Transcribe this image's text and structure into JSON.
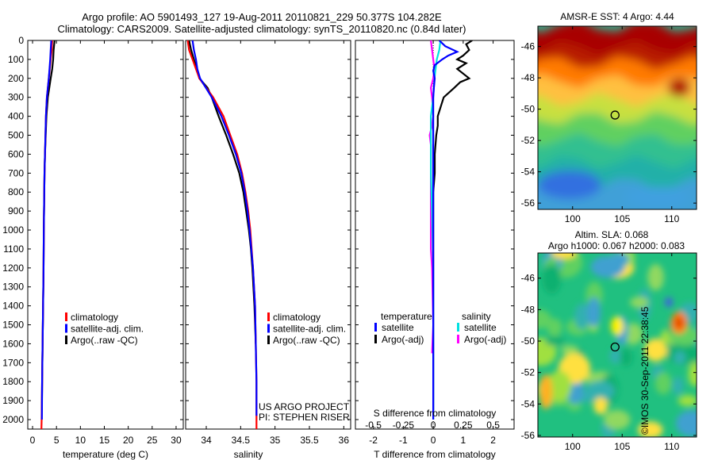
{
  "title_line1": "Argo profile: AO 5901493_127 19-Aug-2011 20110821_229 50.377S 104.282E",
  "title_line2": "Climatology: CARS2009. Satellite-adjusted climatology: synTS_20110820.nc (0.84d later)",
  "stamp": "©IMOS 30-Sep-2011 22:38:45",
  "colors": {
    "climatology": "#ff0000",
    "satellite": "#0000ff",
    "argo": "#000000",
    "t_sat": "#00e0e0",
    "s_argo": "#ff00ff"
  },
  "depth_ticks": [
    "0",
    "100",
    "200",
    "300",
    "400",
    "500",
    "600",
    "700",
    "800",
    "900",
    "1000",
    "1100",
    "1200",
    "1300",
    "1400",
    "1500",
    "1600",
    "1700",
    "1800",
    "1900",
    "2000"
  ],
  "chart_data": [
    {
      "type": "line",
      "xlabel": "temperature (deg C)",
      "xlim": [
        -1,
        31.5
      ],
      "ylim": [
        2050,
        0
      ],
      "xticks": [
        0,
        5,
        10,
        15,
        20,
        25,
        30
      ],
      "legend": [
        "climatology",
        "satellite-adj. clim.",
        "Argo(..raw -QC)"
      ],
      "series": [
        {
          "name": "climatology",
          "depth": [
            0,
            50,
            100,
            150,
            200,
            250,
            300,
            400,
            500,
            600,
            700,
            800,
            900,
            1000,
            1200,
            1400,
            1600,
            1800,
            2000,
            2050
          ],
          "values": [
            4.1,
            4.0,
            3.8,
            3.6,
            3.4,
            3.2,
            3.0,
            2.8,
            2.7,
            2.6,
            2.5,
            2.45,
            2.4,
            2.35,
            2.3,
            2.2,
            2.1,
            2.0,
            1.9,
            1.85
          ]
        },
        {
          "name": "satellite-adj. clim.",
          "depth": [
            0,
            50,
            100,
            150,
            200,
            250,
            300,
            400,
            500,
            600,
            700,
            800,
            900,
            1000,
            1200,
            1400,
            1600,
            1800,
            2000
          ],
          "values": [
            3.9,
            3.8,
            3.7,
            3.55,
            3.4,
            3.2,
            3.0,
            2.8,
            2.7,
            2.6,
            2.5,
            2.45,
            2.4,
            2.35,
            2.3,
            2.2,
            2.1,
            2.0,
            1.95
          ]
        },
        {
          "name": "Argo(..raw -QC)",
          "depth": [
            0,
            50,
            100,
            150,
            200,
            250,
            300,
            400,
            500,
            600,
            700,
            800,
            900,
            1000,
            1200,
            1400,
            1600,
            1800,
            1950
          ],
          "values": [
            4.6,
            4.4,
            4.3,
            4.1,
            3.8,
            3.5,
            3.2,
            2.9,
            2.75,
            2.6,
            2.5,
            2.45,
            2.4,
            2.35,
            2.3,
            2.2,
            2.1,
            2.0,
            1.95
          ]
        }
      ]
    },
    {
      "type": "line",
      "xlabel": "salinity",
      "xlim": [
        33.7,
        36.1
      ],
      "ylim": [
        2050,
        0
      ],
      "xticks": [
        34,
        34.5,
        35,
        35.5,
        36
      ],
      "xticklabels": [
        "34",
        "34.5",
        "35",
        "35.5",
        "36"
      ],
      "legend": [
        "climatology",
        "satellite-adj. clim.",
        "Argo(..raw -QC)"
      ],
      "annotation": [
        "US ARGO PROJECT",
        "PI: STEPHEN RISER"
      ],
      "series": [
        {
          "name": "climatology",
          "depth": [
            0,
            50,
            100,
            150,
            200,
            300,
            400,
            500,
            600,
            700,
            800,
            900,
            1000,
            1200,
            1400,
            1600,
            1800,
            2000,
            2050
          ],
          "values": [
            33.73,
            33.75,
            33.8,
            33.85,
            33.9,
            34.1,
            34.25,
            34.35,
            34.45,
            34.52,
            34.57,
            34.61,
            34.64,
            34.68,
            34.71,
            34.72,
            34.73,
            34.73,
            34.73
          ]
        },
        {
          "name": "satellite-adj. clim.",
          "depth": [
            0,
            50,
            100,
            150,
            200,
            300,
            400,
            500,
            600,
            700,
            800,
            900,
            1000,
            1200,
            1400,
            1600,
            1800,
            1980
          ],
          "values": [
            33.8,
            33.82,
            33.85,
            33.87,
            33.91,
            34.08,
            34.22,
            34.33,
            34.43,
            34.51,
            34.56,
            34.6,
            34.63,
            34.68,
            34.71,
            34.72,
            34.73,
            34.73
          ]
        },
        {
          "name": "Argo(..raw -QC)",
          "depth": [
            0,
            50,
            100,
            150,
            200,
            250,
            300,
            400,
            500,
            600,
            700,
            800,
            900,
            1000,
            1100,
            1200,
            1400,
            1600
          ],
          "values": [
            33.75,
            33.78,
            33.82,
            33.86,
            33.9,
            34.02,
            34.08,
            34.18,
            34.29,
            34.39,
            34.48,
            34.54,
            34.58,
            34.62,
            34.65,
            34.67,
            34.7,
            34.72
          ]
        }
      ]
    },
    {
      "type": "line",
      "xlabel": "T difference from climatology",
      "xlim": [
        -2.6,
        2.7
      ],
      "ylim": [
        2050,
        0
      ],
      "xticks": [
        -2,
        -1,
        0,
        1,
        2
      ],
      "top_axis_label": "S difference from climatology",
      "top_ticks": [
        -0.5,
        -0.25,
        0,
        0.25,
        0.5
      ],
      "top_ticklabels": [
        "-0.5",
        "-0.25",
        "0",
        "0.25",
        "0.5"
      ],
      "legend_titles": [
        "temperature",
        "salinity"
      ],
      "legend": [
        "satellite",
        "Argo(-adj)",
        "satellite",
        "Argo(-adj)"
      ],
      "series": [
        {
          "name": "satellite",
          "depth": [
            0,
            30,
            60,
            80,
            100,
            130,
            160,
            200,
            250,
            300,
            400,
            500,
            600,
            800,
            1000,
            1200,
            1500,
            1800,
            2000
          ],
          "values": [
            0.2,
            0.4,
            0.8,
            0.5,
            0.3,
            0.05,
            0,
            0.05,
            0.02,
            0,
            0,
            0,
            0,
            0,
            0,
            0,
            0,
            0,
            0
          ]
        },
        {
          "name": "Argo(-adj)",
          "depth": [
            0,
            20,
            50,
            80,
            100,
            120,
            150,
            200,
            220,
            250,
            300,
            350,
            400,
            450,
            500,
            600,
            700,
            800,
            1000,
            1200,
            1400,
            1600,
            1950
          ],
          "values": [
            1.3,
            1.1,
            1.2,
            1.0,
            0.8,
            1.1,
            0.8,
            1.2,
            0.9,
            0.7,
            0.35,
            0.25,
            0.15,
            0.15,
            0.1,
            0.05,
            0.05,
            0,
            0,
            0,
            0,
            0,
            0
          ]
        },
        {
          "name": "satellite",
          "depth": [
            0,
            50,
            100,
            150,
            200,
            300,
            400,
            500,
            700,
            900,
            1200,
            1500,
            1800,
            2000
          ],
          "values": [
            0.06,
            0.05,
            0.03,
            0.02,
            0.01,
            0.0,
            -0.02,
            -0.02,
            -0.02,
            -0.01,
            0,
            0,
            0,
            0
          ]
        },
        {
          "name": "Argo(-adj)",
          "depth": [
            0,
            50,
            100,
            150,
            200,
            250,
            300,
            400,
            450,
            500,
            550,
            600,
            700,
            800,
            900,
            1000,
            1100,
            1200,
            1500,
            1650
          ],
          "values": [
            -0.02,
            -0.01,
            0.0,
            0.01,
            0.0,
            -0.02,
            -0.01,
            0.0,
            -0.01,
            -0.03,
            -0.02,
            -0.02,
            -0.02,
            -0.02,
            -0.02,
            -0.02,
            -0.02,
            -0.01,
            0,
            -0.01
          ]
        }
      ]
    },
    {
      "type": "heatmap",
      "title": "AMSR-E SST: 4 Argo: 4.44",
      "xlim": [
        96.5,
        112.5
      ],
      "ylim": [
        -56.4,
        -44.7
      ],
      "xticks": [
        100,
        105,
        110
      ],
      "yticks": [
        -46,
        -48,
        -50,
        -52,
        -54,
        -56
      ],
      "marker": {
        "x": 104.282,
        "y": -50.377
      }
    },
    {
      "type": "heatmap",
      "title": "Altim. SLA: 0.068",
      "subtitle": "Argo h1000: 0.067 h2000: 0.083",
      "xlim": [
        96.5,
        112.5
      ],
      "ylim": [
        -56.1,
        -44.4
      ],
      "xticks": [
        100,
        105,
        110
      ],
      "yticks": [
        -46,
        -48,
        -50,
        -52,
        -54,
        -56
      ],
      "marker": {
        "x": 104.282,
        "y": -50.377
      }
    }
  ]
}
